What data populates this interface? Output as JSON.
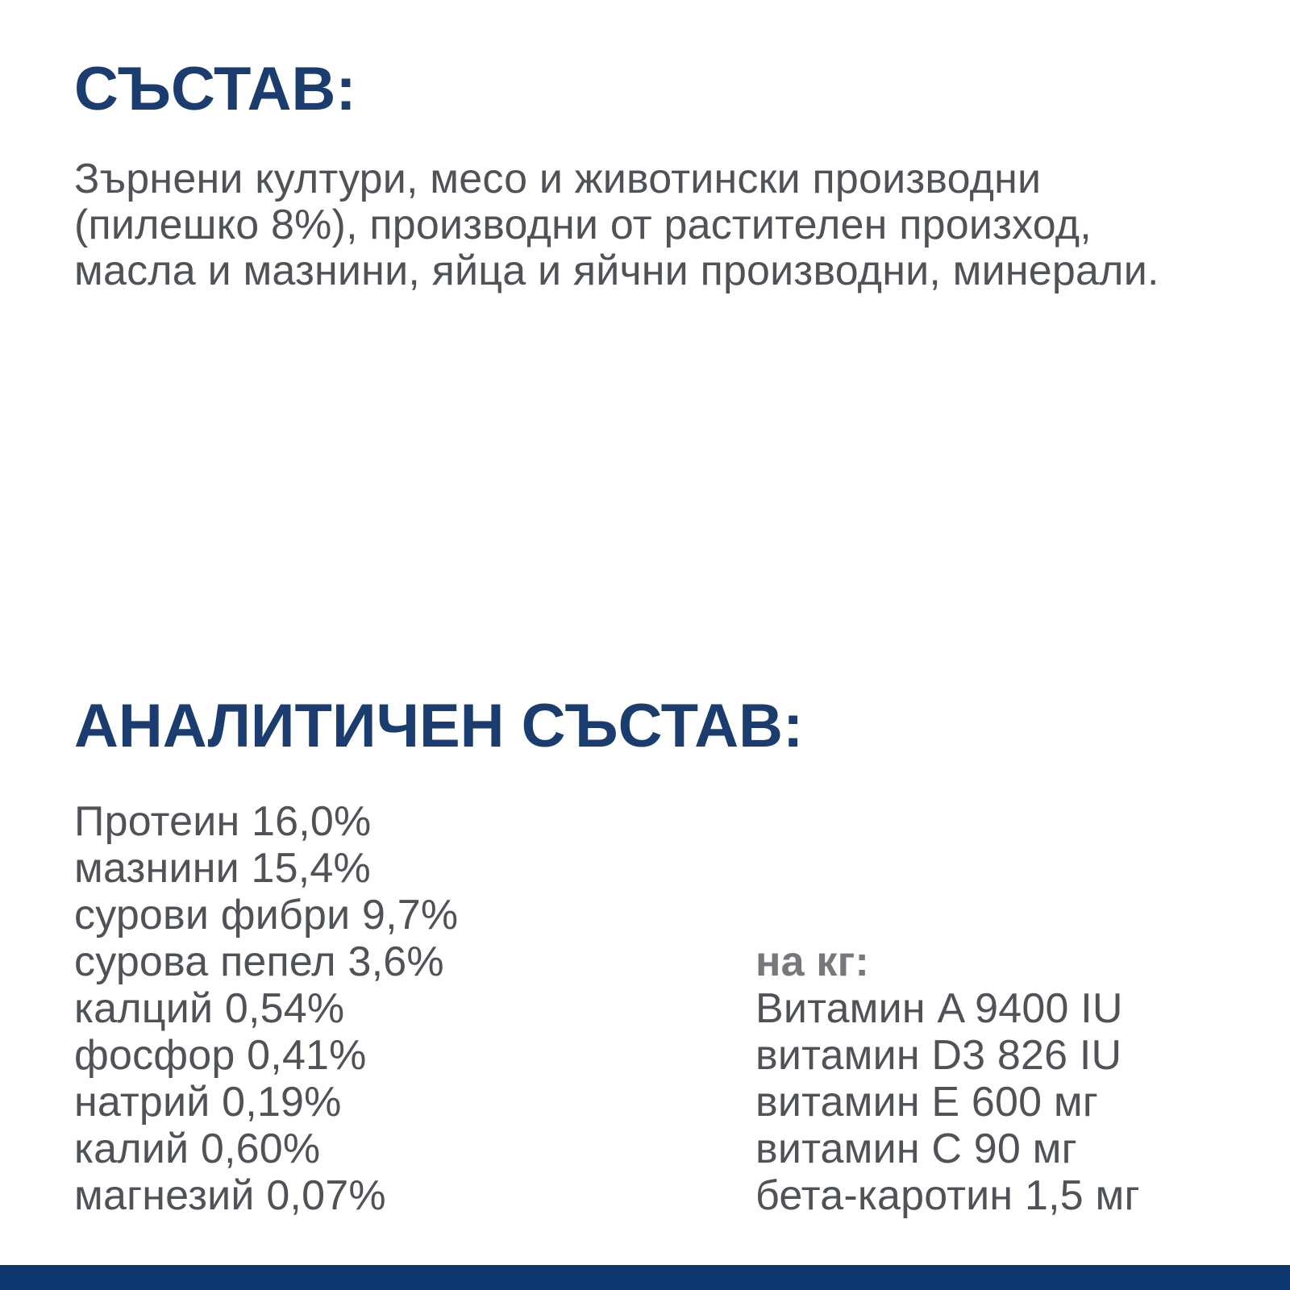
{
  "page": {
    "background_color": "#FFFFFF",
    "heading_color": "#1B3C6E",
    "body_text_color": "#4F5257",
    "muted_label_color": "#77787B",
    "footer_bar_color": "#0E3870"
  },
  "composition": {
    "heading": "СЪСТАВ:",
    "body_lines": [
      "Зърнени култури, месо и животински производни",
      "(пилешко 8%), производни от растителен произход,",
      "масла и мазнини, яйца и яйчни производни, минерали."
    ]
  },
  "analytical": {
    "heading": "АНАЛИТИЧЕН СЪСТАВ:",
    "nutrients": [
      "Протеин 16,0%",
      "мазнини 15,4%",
      "сурови фибри 9,7%",
      "сурова пепел 3,6%",
      "калций 0,54%",
      "фосфор 0,41%",
      "натрий 0,19%",
      "калий 0,60%",
      "магнезий 0,07%"
    ],
    "per_kg": {
      "label": "на кг:",
      "vitamins": [
        "Витамин A 9400 IU",
        "витамин D3 826 IU",
        "витамин E 600 мг",
        "витамин C 90 мг",
        "бета-каротин 1,5 мг"
      ]
    }
  }
}
